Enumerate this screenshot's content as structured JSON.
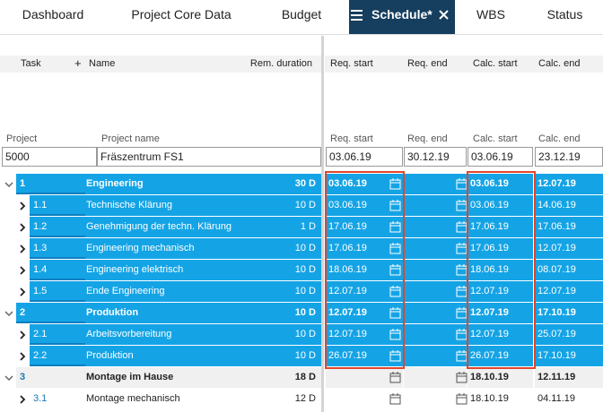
{
  "tabs": [
    "Dashboard",
    "Project Core Data",
    "Budget",
    "Schedule*",
    "WBS",
    "Status"
  ],
  "active_tab": 3,
  "columns": {
    "task": "Task",
    "add": "+",
    "name": "Name",
    "duration": "Rem. duration",
    "req_start": "Req. start",
    "req_end": "Req. end",
    "calc_start": "Calc. start",
    "calc_end": "Calc. end"
  },
  "project_header": {
    "project": "Project",
    "project_name": "Project name",
    "req_start": "Req. start",
    "req_end": "Req. end",
    "calc_start": "Calc. start",
    "calc_end": "Calc. end"
  },
  "project": {
    "project": "5000",
    "project_name": "Fräszentrum FS1",
    "req_start": "03.06.19",
    "req_end": "30.12.19",
    "calc_start": "03.06.19",
    "calc_end": "23.12.19"
  },
  "rows": [
    {
      "id": "1",
      "name": "Engineering",
      "duration": "30 D",
      "req_start": "03.06.19",
      "calc_start": "03.06.19",
      "calc_end": "12.07.19",
      "level": 0,
      "selected": true
    },
    {
      "id": "1.1",
      "name": "Technische Klärung",
      "duration": "10 D",
      "req_start": "03.06.19",
      "calc_start": "03.06.19",
      "calc_end": "14.06.19",
      "level": 1,
      "selected": true
    },
    {
      "id": "1.2",
      "name": "Genehmigung der techn. Klärung",
      "duration": "1 D",
      "req_start": "17.06.19",
      "calc_start": "17.06.19",
      "calc_end": "17.06.19",
      "level": 1,
      "selected": true
    },
    {
      "id": "1.3",
      "name": "Engineering mechanisch",
      "duration": "10 D",
      "req_start": "17.06.19",
      "calc_start": "17.06.19",
      "calc_end": "12.07.19",
      "level": 1,
      "selected": true
    },
    {
      "id": "1.4",
      "name": "Engineering elektrisch",
      "duration": "10 D",
      "req_start": "18.06.19",
      "calc_start": "18.06.19",
      "calc_end": "08.07.19",
      "level": 1,
      "selected": true
    },
    {
      "id": "1.5",
      "name": "Ende Engineering",
      "duration": "10 D",
      "req_start": "12.07.19",
      "calc_start": "12.07.19",
      "calc_end": "12.07.19",
      "level": 1,
      "selected": true
    },
    {
      "id": "2",
      "name": "Produktion",
      "duration": "10 D",
      "req_start": "12.07.19",
      "calc_start": "12.07.19",
      "calc_end": "17.10.19",
      "level": 0,
      "selected": true
    },
    {
      "id": "2.1",
      "name": "Arbeitsvorbereitung",
      "duration": "10 D",
      "req_start": "12.07.19",
      "calc_start": "12.07.19",
      "calc_end": "25.07.19",
      "level": 1,
      "selected": true
    },
    {
      "id": "2.2",
      "name": "Produktion",
      "duration": "10 D",
      "req_start": "26.07.19",
      "calc_start": "26.07.19",
      "calc_end": "17.10.19",
      "level": 1,
      "selected": true
    },
    {
      "id": "3",
      "name": "Montage im Hause",
      "duration": "18 D",
      "calc_start": "18.10.19",
      "calc_end": "12.11.19",
      "level": 0,
      "selected": false
    },
    {
      "id": "3.1",
      "name": "Montage mechanisch",
      "duration": "12 D",
      "calc_start": "18.10.19",
      "calc_end": "04.11.19",
      "level": 1,
      "selected": false
    }
  ]
}
